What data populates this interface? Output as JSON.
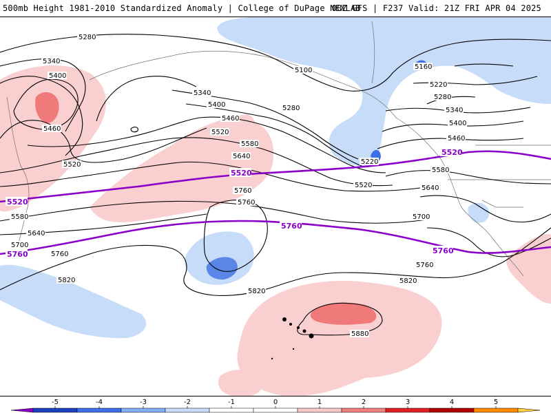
{
  "header": {
    "title_left": "500mb Height 1981-2010 Standardized Anomaly | College of DuPage NEXLAB",
    "title_right": "00Z GFS | F237 Valid: 21Z FRI APR 04 2025"
  },
  "contour_labels": {
    "l5280_a": "5280",
    "l5340": "5340",
    "l5400_a": "5400",
    "l5460_a": "5460",
    "l5520_a": "5520",
    "l5580_a": "5580",
    "l5640_a": "5640",
    "l5700_a": "5700",
    "l5760_a": "5760",
    "l5820_a": "5820",
    "l5100": "5100",
    "l5160": "5160",
    "l5220_a": "5220",
    "l5280_b": "5280",
    "l5340_b": "5340",
    "l5400_b": "5400",
    "l5460_b": "5460",
    "l5580_b": "5580",
    "l5640_b": "5640",
    "l5700_b": "5700",
    "l5760_b": "5760",
    "l5820_b": "5820",
    "l5880": "5880",
    "l5280_c": "5280",
    "l5400_c": "5400",
    "l5460_c": "5460",
    "l5520_b": "5520",
    "l5580_c": "5580",
    "l5640_c": "5640",
    "l5760_c": "5760",
    "l5820_c": "5820",
    "l5220_b": "5220",
    "l5520_c": "5520",
    "l5760_d": "5760",
    "l5340_c": "5340",
    "l5400_d": "5400",
    "l5460_d": "5460",
    "l5520_d": "5520"
  },
  "thick_labels": {
    "t5520_left": "5520",
    "t5520_mid": "5520",
    "t5520_right": "5520",
    "t5760_left": "5760",
    "t5760_mid": "5760",
    "t5760_right": "5760"
  },
  "colorbar": {
    "ticks": [
      "-5",
      "-4",
      "-3",
      "-2",
      "-1",
      "0",
      "1",
      "2",
      "3",
      "4",
      "5"
    ],
    "colors": [
      "#8a00c8",
      "#1a3fbf",
      "#3e6fe8",
      "#86aef2",
      "#c6dcf8",
      "#ffffff",
      "#ffffff",
      "#f8c8c8",
      "#f08080",
      "#e02020",
      "#b00000",
      "#ff8c00",
      "#ffd040"
    ]
  }
}
